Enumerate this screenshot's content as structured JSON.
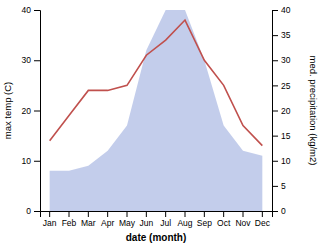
{
  "chart_data": {
    "type": "line",
    "xlabel": "date (month)",
    "ylabel": "max temp (C)",
    "y2label": "med. precipitation (kg/m2)",
    "categories": [
      "Jan",
      "Feb",
      "Mar",
      "Apr",
      "May",
      "Jun",
      "Jul",
      "Aug",
      "Sep",
      "Oct",
      "Nov",
      "Dec"
    ],
    "series": [
      {
        "type": "area",
        "axis": "y2",
        "color": "#b8c4e8",
        "values": [
          8,
          8,
          9,
          12,
          17,
          32,
          40,
          40,
          30,
          17,
          12,
          11
        ]
      },
      {
        "type": "line",
        "color": "#c0504d",
        "values": [
          14,
          19,
          24,
          24,
          25,
          31,
          34,
          38,
          30,
          25,
          17,
          13
        ]
      }
    ],
    "ylim": [
      0,
      40
    ],
    "yticks": [
      0,
      10,
      20,
      30,
      40
    ],
    "y2lim": [
      0,
      40
    ],
    "y2ticks": [
      0,
      5,
      10,
      15,
      20,
      25,
      30,
      35,
      40
    ],
    "grid": false
  }
}
